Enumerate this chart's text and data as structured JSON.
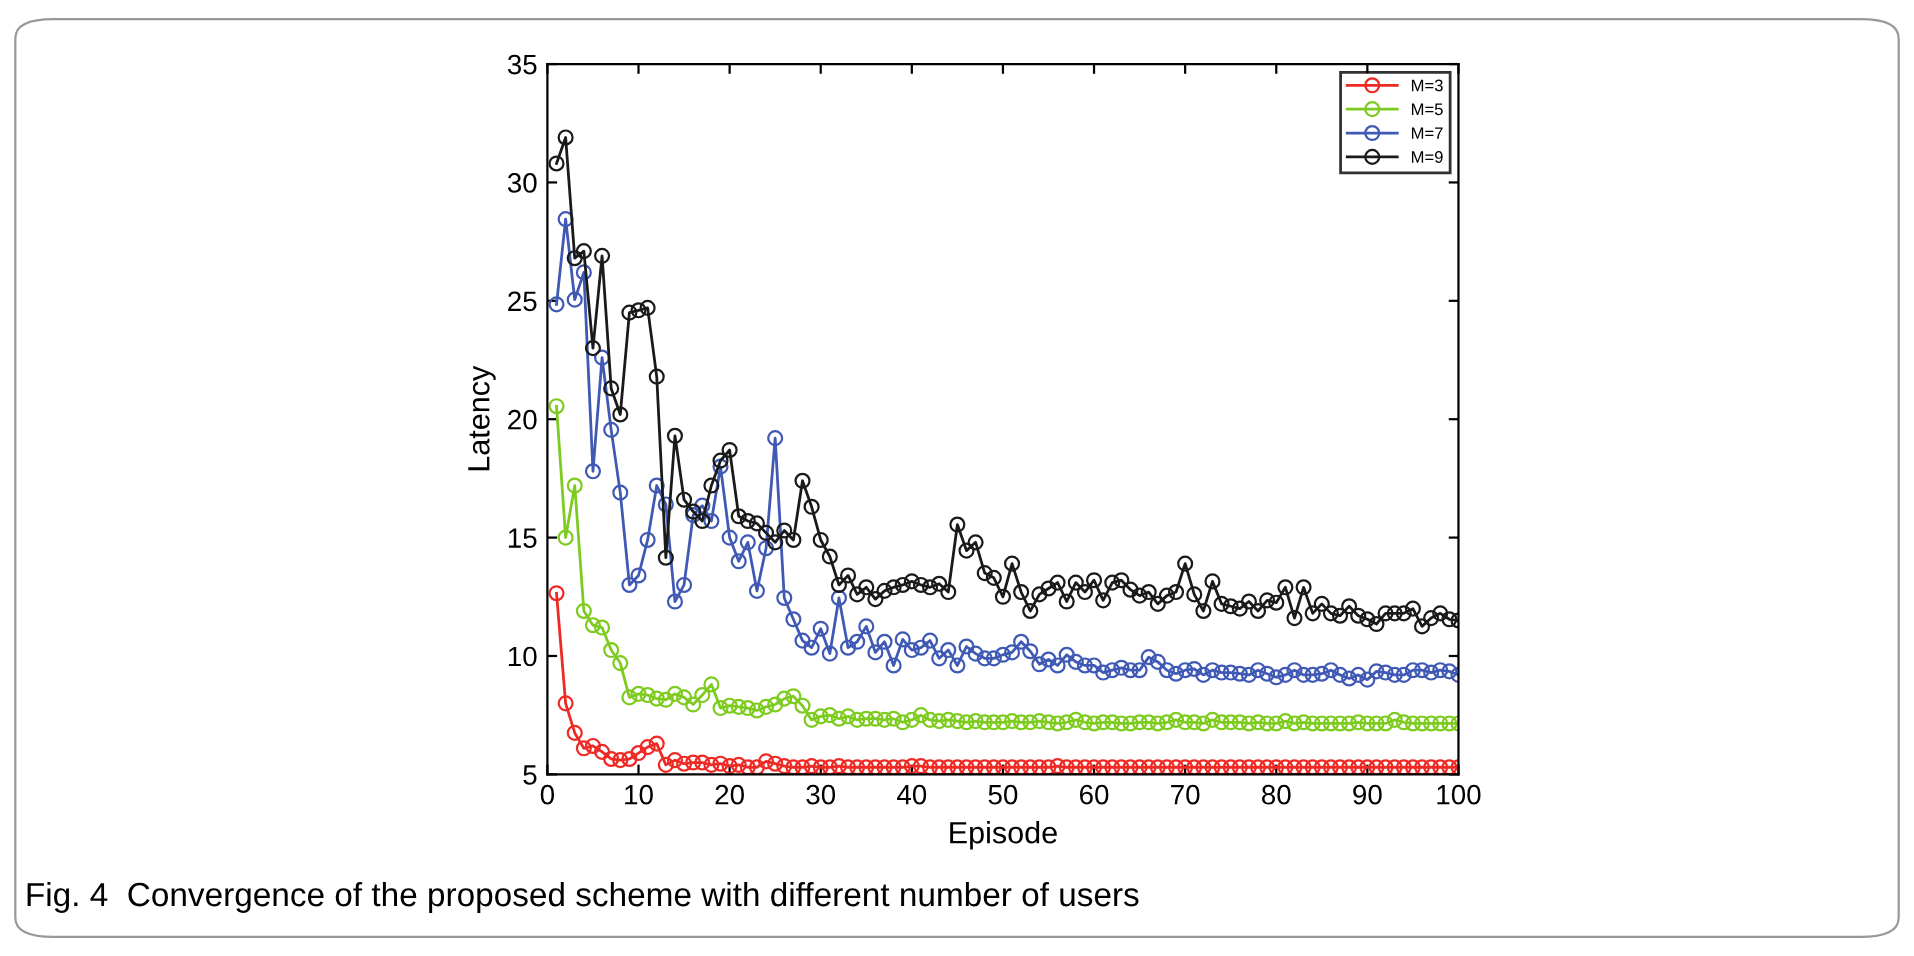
{
  "chart_data": {
    "type": "line",
    "xlabel": "Episode",
    "ylabel": "Latency",
    "xlim": [
      0,
      100
    ],
    "ylim": [
      5,
      35
    ],
    "xticks": [
      0,
      10,
      20,
      30,
      40,
      50,
      60,
      70,
      80,
      90,
      100
    ],
    "yticks": [
      5,
      10,
      15,
      20,
      25,
      30,
      35
    ],
    "grid": false,
    "legend": "top right",
    "marker": "circle",
    "line_style": "solid",
    "annotations": [
      "Fig. 4  Convergence of the proposed scheme with different number of users"
    ],
    "x": [
      1,
      2,
      3,
      4,
      5,
      6,
      7,
      8,
      9,
      10,
      11,
      12,
      13,
      14,
      15,
      16,
      17,
      18,
      19,
      20,
      21,
      22,
      23,
      24,
      25,
      26,
      27,
      28,
      29,
      30,
      31,
      32,
      33,
      34,
      35,
      36,
      37,
      38,
      39,
      40,
      41,
      42,
      43,
      44,
      45,
      46,
      47,
      48,
      49,
      50,
      51,
      52,
      53,
      54,
      55,
      56,
      57,
      58,
      59,
      60,
      61,
      62,
      63,
      64,
      65,
      66,
      67,
      68,
      69,
      70,
      71,
      72,
      73,
      74,
      75,
      76,
      77,
      78,
      79,
      80,
      81,
      82,
      83,
      84,
      85,
      86,
      87,
      88,
      89,
      90,
      91,
      92,
      93,
      94,
      95,
      96,
      97,
      98,
      99,
      100
    ],
    "series": [
      {
        "name": "M=3",
        "color": "#ee2a24",
        "values": [
          12.65,
          8.0,
          6.75,
          6.1,
          6.2,
          5.95,
          5.65,
          5.6,
          5.65,
          5.9,
          6.15,
          6.3,
          5.4,
          5.6,
          5.45,
          5.5,
          5.5,
          5.4,
          5.45,
          5.35,
          5.4,
          5.3,
          5.3,
          5.55,
          5.45,
          5.35,
          5.3,
          5.3,
          5.35,
          5.3,
          5.3,
          5.35,
          5.3,
          5.3,
          5.3,
          5.3,
          5.3,
          5.3,
          5.3,
          5.35,
          5.35,
          5.3,
          5.3,
          5.3,
          5.3,
          5.3,
          5.3,
          5.3,
          5.3,
          5.3,
          5.3,
          5.3,
          5.3,
          5.3,
          5.3,
          5.35,
          5.3,
          5.3,
          5.3,
          5.3,
          5.3,
          5.3,
          5.3,
          5.3,
          5.3,
          5.3,
          5.3,
          5.3,
          5.3,
          5.3,
          5.3,
          5.3,
          5.3,
          5.3,
          5.3,
          5.3,
          5.3,
          5.3,
          5.3,
          5.3,
          5.3,
          5.3,
          5.3,
          5.3,
          5.3,
          5.3,
          5.3,
          5.3,
          5.3,
          5.3,
          5.3,
          5.3,
          5.3,
          5.3,
          5.3,
          5.3,
          5.3,
          5.3,
          5.3,
          5.3
        ]
      },
      {
        "name": "M=5",
        "color": "#7ecb20",
        "values": [
          20.55,
          15.0,
          17.2,
          11.9,
          11.3,
          11.2,
          10.25,
          9.7,
          8.25,
          8.4,
          8.35,
          8.2,
          8.15,
          8.4,
          8.25,
          7.95,
          8.35,
          8.8,
          7.8,
          7.9,
          7.85,
          7.8,
          7.7,
          7.85,
          7.95,
          8.2,
          8.3,
          7.9,
          7.3,
          7.45,
          7.5,
          7.35,
          7.45,
          7.3,
          7.35,
          7.35,
          7.3,
          7.35,
          7.2,
          7.3,
          7.5,
          7.3,
          7.25,
          7.3,
          7.25,
          7.2,
          7.25,
          7.2,
          7.2,
          7.2,
          7.25,
          7.2,
          7.2,
          7.25,
          7.2,
          7.15,
          7.2,
          7.3,
          7.2,
          7.15,
          7.2,
          7.2,
          7.15,
          7.15,
          7.2,
          7.2,
          7.15,
          7.2,
          7.3,
          7.2,
          7.2,
          7.15,
          7.3,
          7.2,
          7.2,
          7.2,
          7.15,
          7.2,
          7.15,
          7.15,
          7.25,
          7.15,
          7.2,
          7.15,
          7.15,
          7.15,
          7.15,
          7.15,
          7.2,
          7.15,
          7.15,
          7.15,
          7.3,
          7.2,
          7.15,
          7.15,
          7.15,
          7.15,
          7.15,
          7.15
        ]
      },
      {
        "name": "M=7",
        "color": "#3f59b5",
        "values": [
          24.85,
          28.45,
          25.05,
          26.2,
          17.8,
          22.6,
          19.55,
          16.9,
          13.0,
          13.4,
          14.9,
          17.2,
          16.4,
          12.3,
          13.0,
          15.95,
          16.35,
          15.7,
          18.0,
          15.0,
          14.0,
          14.8,
          12.75,
          14.55,
          19.2,
          12.45,
          11.55,
          10.65,
          10.35,
          11.15,
          10.1,
          12.45,
          10.35,
          10.6,
          11.25,
          10.15,
          10.6,
          9.6,
          10.7,
          10.25,
          10.35,
          10.65,
          9.9,
          10.25,
          9.6,
          10.4,
          10.1,
          9.9,
          9.9,
          10.05,
          10.15,
          10.6,
          10.2,
          9.65,
          9.85,
          9.6,
          10.05,
          9.75,
          9.6,
          9.6,
          9.3,
          9.4,
          9.5,
          9.4,
          9.4,
          9.95,
          9.75,
          9.4,
          9.25,
          9.4,
          9.45,
          9.2,
          9.4,
          9.3,
          9.3,
          9.25,
          9.2,
          9.4,
          9.25,
          9.1,
          9.2,
          9.4,
          9.2,
          9.2,
          9.25,
          9.4,
          9.2,
          9.05,
          9.2,
          9.0,
          9.35,
          9.3,
          9.2,
          9.2,
          9.4,
          9.4,
          9.3,
          9.4,
          9.35,
          9.2
        ]
      },
      {
        "name": "M=9",
        "color": "#1a1a1a",
        "values": [
          30.8,
          31.9,
          26.8,
          27.1,
          23.0,
          26.9,
          21.3,
          20.2,
          24.5,
          24.6,
          24.7,
          21.8,
          14.15,
          19.3,
          16.6,
          16.1,
          15.7,
          17.2,
          18.25,
          18.7,
          15.9,
          15.7,
          15.6,
          15.2,
          14.8,
          15.3,
          14.9,
          17.4,
          16.3,
          14.9,
          14.2,
          13.0,
          13.4,
          12.6,
          12.9,
          12.4,
          12.75,
          12.9,
          13.0,
          13.15,
          13.0,
          12.9,
          13.05,
          12.7,
          15.55,
          14.45,
          14.8,
          13.5,
          13.3,
          12.5,
          13.9,
          12.7,
          11.9,
          12.6,
          12.85,
          13.1,
          12.3,
          13.1,
          12.7,
          13.2,
          12.35,
          13.1,
          13.2,
          12.8,
          12.55,
          12.7,
          12.2,
          12.55,
          12.7,
          13.9,
          12.6,
          11.9,
          13.15,
          12.2,
          12.1,
          12.0,
          12.3,
          11.9,
          12.35,
          12.25,
          12.9,
          11.6,
          12.9,
          11.8,
          12.2,
          11.8,
          11.7,
          12.1,
          11.7,
          11.55,
          11.35,
          11.8,
          11.8,
          11.8,
          12.0,
          11.25,
          11.6,
          11.8,
          11.55,
          11.5
        ]
      }
    ]
  }
}
